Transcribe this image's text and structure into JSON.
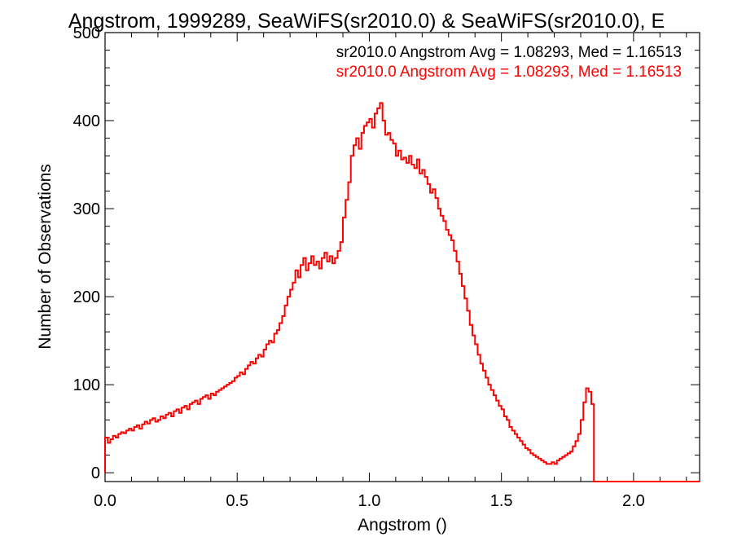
{
  "chart_data": {
    "type": "histogram",
    "title": "Angstrom, 1999289, SeaWiFS(sr2010.0) & SeaWiFS(sr2010.0), E",
    "xlabel": "Angstrom ()",
    "ylabel": "Number of Observations",
    "xlim": [
      0.0,
      2.25
    ],
    "ylim": [
      -10,
      500
    ],
    "xticks": [
      0.0,
      0.5,
      1.0,
      1.5,
      2.0
    ],
    "xtick_labels": [
      "0.0",
      "0.5",
      "1.0",
      "1.5",
      "2.0"
    ],
    "yticks": [
      0,
      100,
      200,
      300,
      400,
      500
    ],
    "ytick_labels": [
      "0",
      "100",
      "200",
      "300",
      "400",
      "500"
    ],
    "bin_start": 0.0,
    "bin_width": 0.01,
    "annotations": [
      {
        "text": "sr2010.0 Angstrom Avg = 1.08293, Med = 1.16513",
        "color": "#000000"
      },
      {
        "text": "sr2010.0 Angstrom Avg = 1.08293, Med = 1.16513",
        "color": "#ff0000"
      }
    ],
    "series": [
      {
        "color": "#ff0000",
        "values": [
          40,
          34,
          38,
          42,
          40,
          44,
          46,
          45,
          48,
          50,
          48,
          52,
          54,
          50,
          55,
          58,
          56,
          60,
          62,
          58,
          60,
          64,
          62,
          66,
          68,
          64,
          70,
          72,
          68,
          74,
          76,
          72,
          78,
          80,
          82,
          78,
          84,
          86,
          88,
          84,
          90,
          88,
          92,
          94,
          96,
          98,
          100,
          102,
          104,
          108,
          110,
          114,
          112,
          118,
          122,
          126,
          124,
          130,
          134,
          132,
          140,
          146,
          150,
          148,
          158,
          162,
          170,
          178,
          190,
          200,
          208,
          216,
          230,
          222,
          236,
          244,
          230,
          238,
          246,
          236,
          240,
          232,
          244,
          250,
          240,
          246,
          238,
          244,
          252,
          262,
          290,
          310,
          330,
          360,
          372,
          380,
          368,
          386,
          394,
          398,
          402,
          392,
          408,
          414,
          420,
          400,
          384,
          386,
          378,
          374,
          360,
          366,
          356,
          358,
          352,
          360,
          350,
          346,
          356,
          340,
          344,
          336,
          328,
          318,
          322,
          312,
          300,
          292,
          286,
          276,
          270,
          264,
          252,
          240,
          226,
          212,
          198,
          184,
          168,
          156,
          146,
          134,
          124,
          116,
          108,
          100,
          94,
          88,
          82,
          76,
          72,
          64,
          60,
          52,
          48,
          44,
          40,
          36,
          32,
          28,
          26,
          22,
          20,
          18,
          16,
          14,
          12,
          10,
          10,
          12,
          10,
          14,
          16,
          18,
          20,
          22,
          24,
          30,
          36,
          44,
          60,
          80,
          96,
          92,
          78
        ]
      }
    ]
  }
}
